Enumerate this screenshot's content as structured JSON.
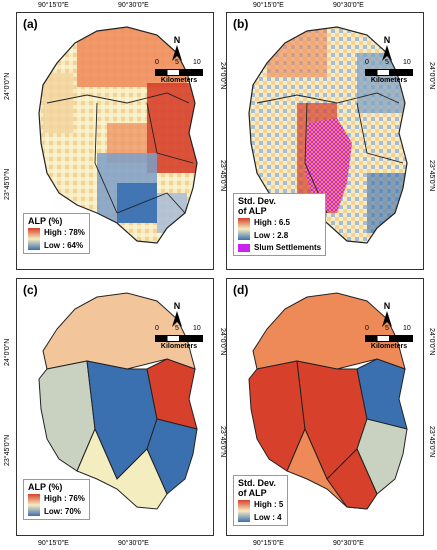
{
  "panels": [
    {
      "id": "a",
      "label": "(a)",
      "legend_title": "ALP (%)",
      "legend_high": "High : 78%",
      "legend_low": "Low : 64%",
      "ramp_top": "#d7402b",
      "ramp_bottom": "#3a6fb0"
    },
    {
      "id": "b",
      "label": "(b)",
      "legend_title_line1": "Std. Dev.",
      "legend_title_line2": "of ALP",
      "legend_high": "High : 6.5",
      "legend_low": "Low : 2.8",
      "legend_extra": "Slum Settlements",
      "ramp_top": "#d7402b",
      "ramp_bottom": "#3a6fb0",
      "slum_color": "#cc22ee"
    },
    {
      "id": "c",
      "label": "(c)",
      "legend_title": "ALP (%)",
      "legend_high": "High : 76%",
      "legend_low": "Low: 70%",
      "ramp_top": "#d7402b",
      "ramp_bottom": "#3a6fb0"
    },
    {
      "id": "d",
      "label": "(d)",
      "legend_title_line1": "Std. Dev.",
      "legend_title_line2": "of ALP",
      "legend_high": "High : 5",
      "legend_low": "Low : 4",
      "ramp_top": "#d7402b",
      "ramp_bottom": "#3a6fb0"
    }
  ],
  "north_label": "N",
  "scale": {
    "ticks": [
      "0",
      "5",
      "10"
    ],
    "unit": "Kilometers"
  },
  "coords": {
    "lon_left": "90°15'0\"E",
    "lon_right": "90°30'0\"E",
    "lat_top": "24°0'0\"N",
    "lat_bottom": "23°45'0\"N"
  },
  "colors": {
    "high_red": "#d7402b",
    "orange": "#ee8a58",
    "low_blue": "#3a6fb0",
    "pale_yellow": "#f6ecc0",
    "grey_green": "#c9d2c0",
    "slum": "#cc22ee"
  }
}
